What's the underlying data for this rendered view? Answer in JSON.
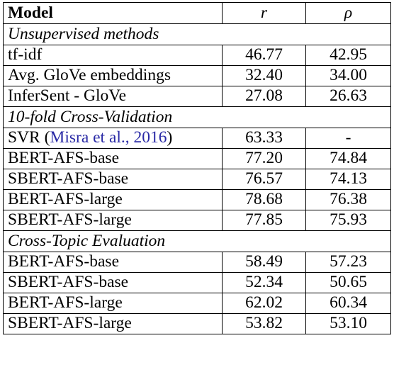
{
  "table": {
    "headers": {
      "model": "Model",
      "r": "r",
      "rho": "ρ"
    },
    "sections": [
      {
        "title": "Unsupervised methods",
        "rows": [
          {
            "model": "tf-idf",
            "r": "46.77",
            "rho": "42.95"
          },
          {
            "model": "Avg. GloVe embeddings",
            "r": "32.40",
            "rho": "34.00"
          },
          {
            "model": "InferSent - GloVe",
            "r": "27.08",
            "rho": "26.63"
          }
        ]
      },
      {
        "title": "10-fold Cross-Validation",
        "rows": [
          {
            "model": "SVR",
            "cite_author": "Misra et al.",
            "cite_sep": ", ",
            "cite_year": "2016",
            "r": "63.33",
            "rho": "-"
          },
          {
            "model": "BERT-AFS-base",
            "r": "77.20",
            "rho": "74.84"
          },
          {
            "model": "SBERT-AFS-base",
            "r": "76.57",
            "rho": "74.13"
          },
          {
            "model": "BERT-AFS-large",
            "r": "78.68",
            "rho": "76.38"
          },
          {
            "model": "SBERT-AFS-large",
            "r": "77.85",
            "rho": "75.93"
          }
        ]
      },
      {
        "title": "Cross-Topic Evaluation",
        "rows": [
          {
            "model": "BERT-AFS-base",
            "r": "58.49",
            "rho": "57.23"
          },
          {
            "model": "SBERT-AFS-base",
            "r": "52.34",
            "rho": "50.65"
          },
          {
            "model": "BERT-AFS-large",
            "r": "62.02",
            "rho": "60.34"
          },
          {
            "model": "SBERT-AFS-large",
            "r": "53.82",
            "rho": "53.10"
          }
        ]
      }
    ],
    "colors": {
      "text": "#000000",
      "citation": "#2a2aa6",
      "border": "#000000",
      "background": "#ffffff"
    }
  }
}
